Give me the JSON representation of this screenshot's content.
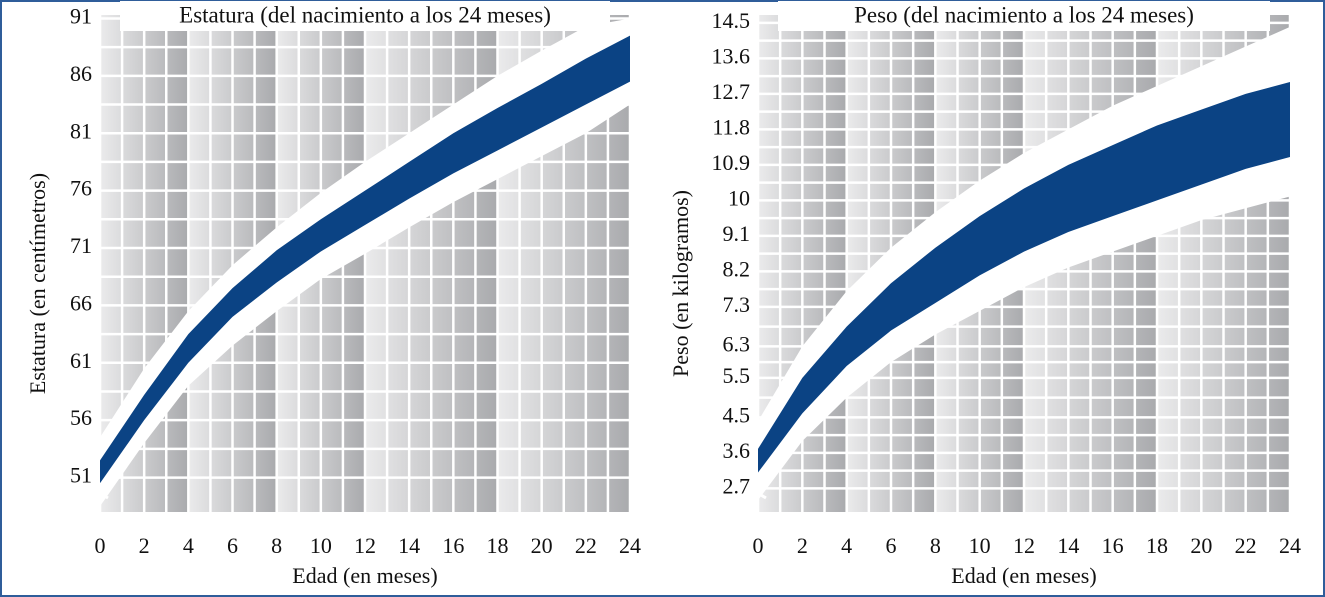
{
  "chart_data": [
    {
      "type": "band",
      "title": "Estatura (del nacimiento a los 24 meses)",
      "xlabel": "Edad (en meses)",
      "ylabel": "Estatura (en centímetros)",
      "x": [
        0,
        2,
        4,
        6,
        8,
        10,
        12,
        14,
        16,
        18,
        20,
        22,
        24
      ],
      "xlim": [
        0,
        24
      ],
      "xticks": [
        0,
        2,
        4,
        6,
        8,
        10,
        12,
        14,
        16,
        18,
        20,
        22,
        24
      ],
      "ylim": [
        48,
        91.3
      ],
      "yticks": [
        51,
        56,
        61,
        66,
        71,
        76,
        81,
        86,
        91
      ],
      "grid": true,
      "series": [
        {
          "color": "#ffffff",
          "lower": [
            48.5,
            54,
            59,
            62.5,
            65.5,
            68.3,
            70.5,
            72.8,
            75,
            77,
            79,
            81,
            83.5
          ],
          "upper": [
            54.5,
            60.5,
            65.5,
            69.5,
            72.8,
            75.8,
            78.5,
            81,
            83.5,
            86,
            88.2,
            90.3,
            91
          ]
        },
        {
          "color": "#0b4384",
          "lower": [
            50.5,
            56,
            61,
            65,
            68,
            70.7,
            73,
            75.3,
            77.5,
            79.5,
            81.5,
            83.5,
            85.5
          ],
          "upper": [
            52.5,
            58.2,
            63.5,
            67.5,
            70.8,
            73.5,
            76,
            78.5,
            81,
            83.2,
            85.3,
            87.5,
            89.5
          ]
        }
      ]
    },
    {
      "type": "band",
      "title": "Peso (del nacimiento a los 24 meses)",
      "xlabel": "Edad (en meses)",
      "ylabel": "Peso (en kilogramos)",
      "x": [
        0,
        2,
        4,
        6,
        8,
        10,
        12,
        14,
        16,
        18,
        20,
        22,
        24
      ],
      "xlim": [
        0,
        24
      ],
      "xticks": [
        0,
        2,
        4,
        6,
        8,
        10,
        12,
        14,
        16,
        18,
        20,
        22,
        24
      ],
      "ylim": [
        2.1,
        14.7
      ],
      "yticks": [
        2.7,
        3.6,
        4.5,
        5.5,
        6.3,
        7.3,
        8.2,
        9.1,
        10,
        10.9,
        11.8,
        12.7,
        13.6,
        14.5
      ],
      "grid": true,
      "series": [
        {
          "color": "#ffffff",
          "lower": [
            2.4,
            3.9,
            5.0,
            5.9,
            6.6,
            7.2,
            7.8,
            8.3,
            8.7,
            9.1,
            9.5,
            9.8,
            10.1
          ],
          "upper": [
            4.4,
            6.3,
            7.7,
            8.8,
            9.7,
            10.5,
            11.2,
            11.8,
            12.4,
            12.9,
            13.4,
            13.9,
            14.4
          ]
        },
        {
          "color": "#0b4384",
          "lower": [
            3.1,
            4.6,
            5.8,
            6.7,
            7.4,
            8.1,
            8.7,
            9.2,
            9.6,
            10.0,
            10.4,
            10.8,
            11.1
          ],
          "upper": [
            3.7,
            5.5,
            6.8,
            7.9,
            8.8,
            9.6,
            10.3,
            10.9,
            11.4,
            11.9,
            12.3,
            12.7,
            13.0
          ]
        }
      ]
    }
  ]
}
